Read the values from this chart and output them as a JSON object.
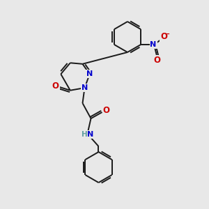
{
  "bg_color": "#e8e8e8",
  "bond_color": "#1a1a1a",
  "atom_colors": {
    "N": "#0000cc",
    "O": "#cc0000",
    "H": "#5f9ea0",
    "C": "#1a1a1a"
  }
}
